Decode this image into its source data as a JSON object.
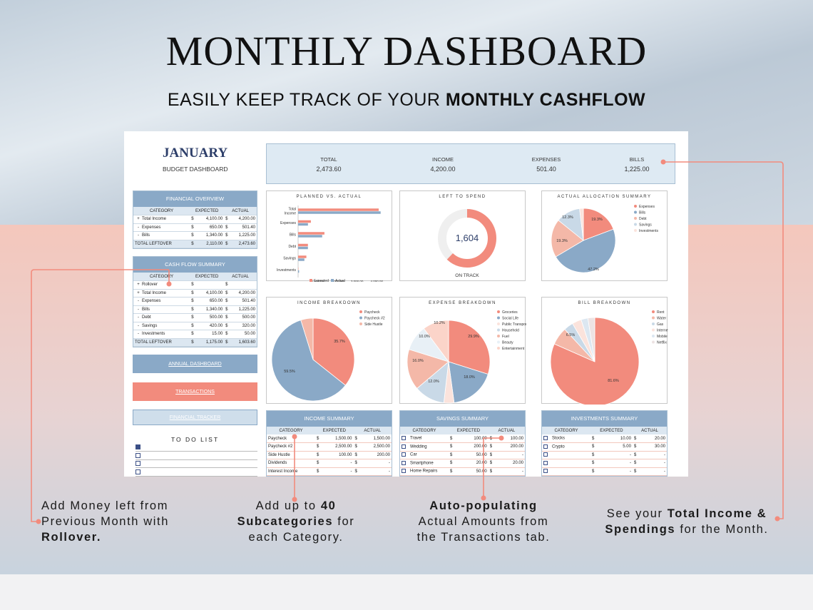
{
  "hero": {
    "title": "MONTHLY DASHBOARD",
    "subtitle_pre": "EASILY KEEP TRACK OF YOUR ",
    "subtitle_bold": "MONTHLY CASHFLOW"
  },
  "colors": {
    "salmon": "#f28b7d",
    "steel": "#8aa9c7",
    "navy": "#2e3f6a",
    "light_blue": "#dce7f1",
    "peach": "#f4b8a8",
    "pale": "#fbe3dc"
  },
  "dashboard": {
    "month": "JANUARY",
    "subtitle": "BUDGET DASHBOARD",
    "kpis": [
      {
        "label": "TOTAL",
        "value": "2,473.60"
      },
      {
        "label": "INCOME",
        "value": "4,200.00"
      },
      {
        "label": "EXPENSES",
        "value": "501.40"
      },
      {
        "label": "BILLS",
        "value": "1,225.00"
      }
    ]
  },
  "financial_overview": {
    "title": "FINANCIAL OVERVIEW",
    "columns": [
      "CATEGORY",
      "EXPECTED",
      "ACTUAL"
    ],
    "rows": [
      {
        "sign": "+",
        "category": "Total Income",
        "cur1": "$",
        "expected": "4,100.00",
        "cur2": "$",
        "actual": "4,200.00"
      },
      {
        "sign": "-",
        "category": "Expenses",
        "cur1": "$",
        "expected": "650.00",
        "cur2": "$",
        "actual": "501.40"
      },
      {
        "sign": "-",
        "category": "Bills",
        "cur1": "$",
        "expected": "1,340.00",
        "cur2": "$",
        "actual": "1,225.00"
      }
    ],
    "total": {
      "category": "TOTAL LEFTOVER",
      "cur1": "$",
      "expected": "2,110.00",
      "cur2": "$",
      "actual": "2,473.60"
    }
  },
  "cash_flow": {
    "title": "CASH FLOW SUMMARY",
    "columns": [
      "CATEGORY",
      "EXPECTED",
      "ACTUAL"
    ],
    "rows": [
      {
        "sign": "+",
        "category": "Rollover",
        "cur1": "$",
        "expected": "",
        "cur2": "$",
        "actual": ""
      },
      {
        "sign": "+",
        "category": "Total Income",
        "cur1": "$",
        "expected": "4,100.00",
        "cur2": "$",
        "actual": "4,200.00"
      },
      {
        "sign": "-",
        "category": "Expenses",
        "cur1": "$",
        "expected": "650.00",
        "cur2": "$",
        "actual": "501.40"
      },
      {
        "sign": "-",
        "category": "Bills",
        "cur1": "$",
        "expected": "1,340.00",
        "cur2": "$",
        "actual": "1,225.00"
      },
      {
        "sign": "-",
        "category": "Debt",
        "cur1": "$",
        "expected": "500.00",
        "cur2": "$",
        "actual": "500.00"
      },
      {
        "sign": "-",
        "category": "Savings",
        "cur1": "$",
        "expected": "420.00",
        "cur2": "$",
        "actual": "320.00"
      },
      {
        "sign": "-",
        "category": "Investments",
        "cur1": "$",
        "expected": "15.00",
        "cur2": "$",
        "actual": "50.00"
      }
    ],
    "total": {
      "category": "TOTAL LEFTOVER",
      "cur1": "$",
      "expected": "1,175.00",
      "cur2": "$",
      "actual": "1,603.60"
    }
  },
  "nav": {
    "annual": "ANNUAL DASHBOARD",
    "transactions": "TRANSACTIONS",
    "tracker": "FINANCIAL TRACKER"
  },
  "todo": {
    "title": "TO DO LIST",
    "items": [
      {
        "checked": true
      },
      {
        "checked": false
      },
      {
        "checked": false
      },
      {
        "checked": false
      }
    ]
  },
  "charts": {
    "planned_vs_actual": {
      "title": "PLANNED VS. ACTUAL",
      "categories": [
        "Total\nIncome",
        "Expenses",
        "Bills",
        "Debt",
        "Savings",
        "Investments"
      ],
      "series": [
        {
          "name": "Expected",
          "values": [
            4100,
            650,
            1340,
            500,
            420,
            15
          ]
        },
        {
          "name": "Actual",
          "values": [
            4200,
            501.4,
            1225,
            500,
            320,
            50
          ]
        }
      ],
      "xticks": [
        "1,000.00",
        "2,000.00",
        "3,000.00",
        "4,000.00"
      ],
      "xlim": [
        0,
        4500
      ]
    },
    "left_to_spend": {
      "title": "LEFT TO SPEND",
      "value": "1,604",
      "fraction": 0.38,
      "status": "ON TRACK"
    },
    "allocation": {
      "title": "ACTUAL ALLOCATION SUMMARY",
      "slices": [
        {
          "name": "Expenses",
          "value": 19.3
        },
        {
          "name": "Bills",
          "value": 47.2
        },
        {
          "name": "Debt",
          "value": 19.3
        },
        {
          "name": "Savings",
          "value": 12.3
        },
        {
          "name": "Investments",
          "value": 1.9
        }
      ],
      "labels": [
        "19.3%",
        "47.2%",
        "19.3%",
        "12.3%"
      ]
    },
    "income_breakdown": {
      "title": "INCOME BREAKDOWN",
      "slices": [
        {
          "name": "Paycheck",
          "value": 35.7
        },
        {
          "name": "Paycheck #2",
          "value": 59.5
        },
        {
          "name": "Side Hustle",
          "value": 4.8
        }
      ],
      "labels": [
        "35.7%",
        "59.5%"
      ]
    },
    "expense_breakdown": {
      "title": "EXPENSE BREAKDOWN",
      "slices": [
        {
          "name": "Groceries",
          "value": 29.9
        },
        {
          "name": "Social Life",
          "value": 18.0
        },
        {
          "name": "Public Transport",
          "value": 4.0
        },
        {
          "name": "Household",
          "value": 12.0
        },
        {
          "name": "Fuel",
          "value": 16.0
        },
        {
          "name": "Beauty",
          "value": 10.0
        },
        {
          "name": "Entertainment",
          "value": 10.2
        }
      ],
      "labels": [
        "29.9%",
        "18.0%",
        "12.0%",
        "16.0%",
        "10.0%",
        "10.2%"
      ]
    },
    "bill_breakdown": {
      "title": "BILL BREAKDOWN",
      "slices": [
        {
          "name": "Rent",
          "value": 81.6
        },
        {
          "name": "Water",
          "value": 6.5
        },
        {
          "name": "Gas",
          "value": 3.5
        },
        {
          "name": "Internet",
          "value": 3.4
        },
        {
          "name": "Mobile",
          "value": 2.5
        },
        {
          "name": "Netflix",
          "value": 2.5
        }
      ],
      "labels": [
        "81.6%",
        "6.5%"
      ]
    }
  },
  "income_summary": {
    "title": "INCOME SUMMARY",
    "columns": [
      "CATEGORY",
      "EXPECTED",
      "ACTUAL"
    ],
    "rows": [
      {
        "category": "Paycheck",
        "cur1": "$",
        "expected": "1,500.00",
        "cur2": "$",
        "actual": "1,500.00"
      },
      {
        "category": "Paycheck #2",
        "cur1": "$",
        "expected": "2,500.00",
        "cur2": "$",
        "actual": "2,500.00"
      },
      {
        "category": "Side Hustle",
        "cur1": "$",
        "expected": "100.00",
        "cur2": "$",
        "actual": "200.00"
      },
      {
        "category": "Dividends",
        "cur1": "$",
        "expected": "-",
        "cur2": "$",
        "actual": "-"
      },
      {
        "category": "Interest Income",
        "cur1": "$",
        "expected": "-",
        "cur2": "$",
        "actual": "-"
      }
    ]
  },
  "savings_summary": {
    "title": "SAVINGS SUMMARY",
    "columns": [
      "CATEGORY",
      "EXPECTED",
      "ACTUAL"
    ],
    "rows": [
      {
        "category": "Travel",
        "cur1": "$",
        "expected": "100.00",
        "cur2": "$",
        "actual": "100.00"
      },
      {
        "category": "Wedding",
        "cur1": "$",
        "expected": "200.00",
        "cur2": "$",
        "actual": "200.00"
      },
      {
        "category": "Car",
        "cur1": "$",
        "expected": "50.00",
        "cur2": "$",
        "actual": "-"
      },
      {
        "category": "Smartphone",
        "cur1": "$",
        "expected": "20.00",
        "cur2": "$",
        "actual": "20.00"
      },
      {
        "category": "Home Repairs",
        "cur1": "$",
        "expected": "50.00",
        "cur2": "$",
        "actual": "-"
      }
    ]
  },
  "investments_summary": {
    "title": "INVESTMENTS SUMMARY",
    "columns": [
      "CATEGORY",
      "EXPECTED",
      "ACTUAL"
    ],
    "rows": [
      {
        "category": "Stocks",
        "cur1": "$",
        "expected": "10.00",
        "cur2": "$",
        "actual": "20.00"
      },
      {
        "category": "Crypto",
        "cur1": "$",
        "expected": "5.00",
        "cur2": "$",
        "actual": "30.00"
      },
      {
        "category": "",
        "cur1": "$",
        "expected": "-",
        "cur2": "$",
        "actual": "-"
      },
      {
        "category": "",
        "cur1": "$",
        "expected": "-",
        "cur2": "$",
        "actual": "-"
      },
      {
        "category": "",
        "cur1": "$",
        "expected": "-",
        "cur2": "$",
        "actual": "-"
      }
    ]
  },
  "annotations": {
    "rollover": {
      "l1": "Add Money left from",
      "l2": "Previous Month with",
      "l3": "Rollover."
    },
    "subcats": {
      "l1a": "Add up to ",
      "l1b": "40",
      "l2a": "Subcategories",
      "l2b": " for",
      "l3": "each Category."
    },
    "auto": {
      "l1": "Auto-populating",
      "l2": "Actual Amounts from",
      "l3": "the Transactions tab."
    },
    "totals": {
      "l1a": "See your ",
      "l1b": "Total Income &",
      "l2a": "Spendings",
      "l2b": " for the Month."
    }
  }
}
